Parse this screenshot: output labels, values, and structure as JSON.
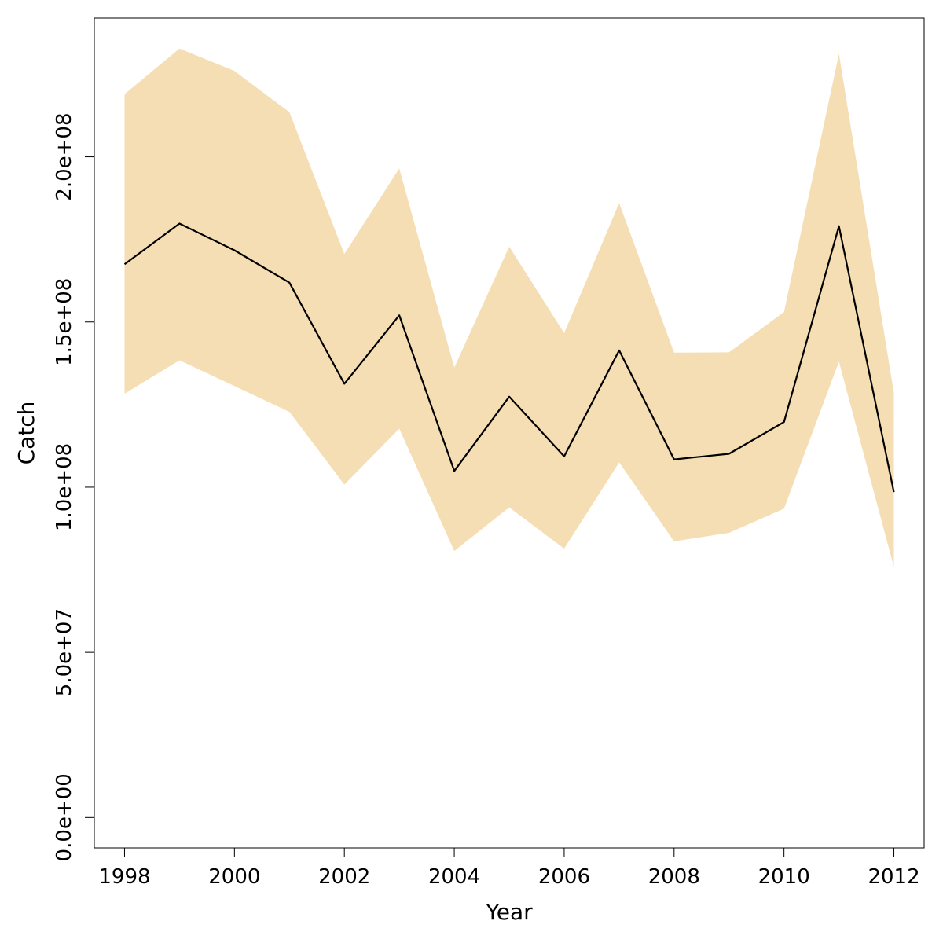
{
  "chart_data": {
    "type": "line",
    "title": "",
    "xlabel": "Year",
    "ylabel": "Catch",
    "xlim": [
      1997.45,
      2012.55
    ],
    "ylim": [
      -9200000,
      242000000
    ],
    "x_ticks": [
      1998,
      2000,
      2002,
      2004,
      2006,
      2008,
      2010,
      2012
    ],
    "x_tick_labels": [
      "1998",
      "2000",
      "2002",
      "2004",
      "2006",
      "2008",
      "2010",
      "2012"
    ],
    "y_ticks": [
      0,
      50000000,
      100000000,
      150000000,
      200000000
    ],
    "y_tick_labels": [
      "0.0e+00",
      "5.0e+07",
      "1.0e+08",
      "1.5e+08",
      "2.0e+08"
    ],
    "x": [
      1998,
      1999,
      2000,
      2001,
      2002,
      2003,
      2004,
      2005,
      2006,
      2007,
      2008,
      2009,
      2010,
      2011,
      2012
    ],
    "series": [
      {
        "values": [
          167500000,
          179800000,
          171700000,
          161900000,
          131300000,
          152000000,
          104900000,
          127400000,
          109300000,
          141400000,
          108400000,
          110100000,
          119700000,
          179000000,
          98500000
        ]
      }
    ],
    "band": {
      "upper": [
        219000000,
        232800000,
        226000000,
        213500000,
        170600000,
        196500000,
        136200000,
        172800000,
        146600000,
        186000000,
        140700000,
        140800000,
        153000000,
        231200000,
        128500000
      ],
      "lower": [
        128300000,
        138400000,
        130600000,
        122800000,
        100800000,
        117700000,
        80700000,
        93900000,
        81400000,
        107500000,
        83600000,
        86200000,
        93500000,
        138000000,
        75900000
      ]
    },
    "colors": {
      "band": "#f5deb3",
      "line": "#000000",
      "axis": "#000000"
    },
    "grid": false,
    "legend": "none"
  }
}
